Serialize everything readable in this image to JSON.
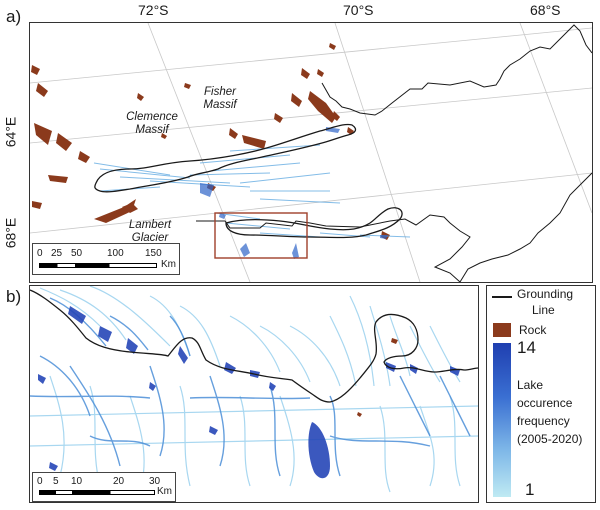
{
  "panels": {
    "a": {
      "label": "a)",
      "lat_ticks": [
        "72°S",
        "70°S",
        "68°S"
      ],
      "lon_ticks": [
        "64°E",
        "68°E"
      ],
      "features": {
        "fisher": [
          "Fisher",
          "Massif"
        ],
        "clemence": [
          "Clemence",
          "Massif"
        ],
        "lambert": [
          "Lambert",
          "Glacier"
        ]
      },
      "scale": {
        "ticks": [
          "0",
          "25",
          "50",
          "100",
          "150"
        ],
        "unit": "Km"
      }
    },
    "b": {
      "label": "b)",
      "scale": {
        "ticks": [
          "0",
          "5",
          "10",
          "20",
          "30"
        ],
        "unit": "Km"
      }
    }
  },
  "legend": {
    "grounding_line": [
      "Grounding",
      "Line"
    ],
    "rock": "Rock",
    "max_value": "14",
    "min_value": "1",
    "lake_label": [
      "Lake",
      "occurence",
      "frequency",
      "(2005-2020)"
    ]
  },
  "colors": {
    "rock": "#8b3a1c",
    "grounding_line": "#1a1a1a",
    "lake_high": "#1f3fb0",
    "lake_low": "#bfeaf3",
    "inset_box": "#a0402a",
    "graticule": "#c8c8c8"
  }
}
